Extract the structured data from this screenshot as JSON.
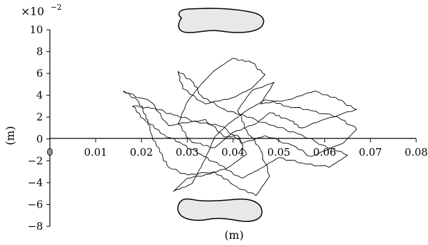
{
  "chart_data": {
    "type": "line",
    "title": "",
    "xlabel": "(m)",
    "ylabel": "(m)",
    "y_multiplier": {
      "base": "×10",
      "exponent": "−2"
    },
    "xlim": [
      0,
      0.08
    ],
    "ylim": [
      -8,
      10
    ],
    "x_ticks": [
      "0",
      "0.01",
      "0.02",
      "0.03",
      "0.04",
      "0.05",
      "0.06",
      "0.07",
      "0.08"
    ],
    "y_ticks": [
      "10",
      "8",
      "6",
      "4",
      "2",
      "0",
      "−2",
      "−4",
      "−6",
      "−8"
    ],
    "grid": false,
    "legend": "none",
    "annotations": [
      "foot-outline-top",
      "foot-outline-bottom"
    ],
    "series": [
      {
        "values_note": "",
        "points": [
          [
            0.038,
            0.2
          ],
          [
            0.034,
            1.8
          ],
          [
            0.026,
            1.2
          ],
          [
            0.022,
            3.4
          ],
          [
            0.016,
            4.4
          ],
          [
            0.019,
            3.6
          ],
          [
            0.021,
            2.2
          ],
          [
            0.022,
            0.6
          ],
          [
            0.024,
            -1.2
          ],
          [
            0.026,
            -2.6
          ],
          [
            0.03,
            -3.3
          ],
          [
            0.036,
            -3.0
          ],
          [
            0.04,
            -4.2
          ],
          [
            0.045,
            -5.2
          ],
          [
            0.048,
            -3.4
          ],
          [
            0.046,
            -1.0
          ],
          [
            0.043,
            0.8
          ],
          [
            0.041,
            2.6
          ],
          [
            0.044,
            4.4
          ],
          [
            0.049,
            5.2
          ],
          [
            0.046,
            3.2
          ],
          [
            0.052,
            3.6
          ],
          [
            0.058,
            4.4
          ],
          [
            0.063,
            3.6
          ],
          [
            0.067,
            2.7
          ],
          [
            0.06,
            1.8
          ],
          [
            0.055,
            1.0
          ],
          [
            0.052,
            1.8
          ],
          [
            0.048,
            2.4
          ],
          [
            0.045,
            1.4
          ],
          [
            0.04,
            0.6
          ],
          [
            0.036,
            -0.8
          ],
          [
            0.031,
            -0.3
          ],
          [
            0.028,
            1.4
          ],
          [
            0.03,
            3.4
          ],
          [
            0.033,
            5.0
          ],
          [
            0.036,
            6.3
          ],
          [
            0.04,
            7.4
          ],
          [
            0.044,
            7.0
          ],
          [
            0.047,
            5.9
          ],
          [
            0.044,
            4.6
          ],
          [
            0.04,
            3.8
          ],
          [
            0.034,
            3.2
          ],
          [
            0.029,
            4.6
          ],
          [
            0.028,
            6.2
          ],
          [
            0.031,
            5.3
          ],
          [
            0.033,
            4.0
          ],
          [
            0.037,
            2.9
          ],
          [
            0.043,
            2.0
          ],
          [
            0.049,
            1.2
          ],
          [
            0.054,
            0.5
          ],
          [
            0.06,
            -0.6
          ],
          [
            0.065,
            -1.5
          ],
          [
            0.061,
            -2.6
          ],
          [
            0.055,
            -2.2
          ],
          [
            0.05,
            -1.7
          ],
          [
            0.046,
            -2.7
          ],
          [
            0.042,
            -3.6
          ],
          [
            0.037,
            -2.4
          ],
          [
            0.033,
            -1.4
          ],
          [
            0.029,
            -0.5
          ],
          [
            0.025,
            0.4
          ],
          [
            0.021,
            1.6
          ],
          [
            0.018,
            3.0
          ],
          [
            0.023,
            2.8
          ],
          [
            0.027,
            2.2
          ],
          [
            0.032,
            1.6
          ],
          [
            0.038,
            1.1
          ],
          [
            0.042,
            -0.4
          ],
          [
            0.047,
            0.3
          ],
          [
            0.053,
            -0.6
          ],
          [
            0.057,
            -1.6
          ],
          [
            0.064,
            -0.4
          ],
          [
            0.067,
            0.9
          ],
          [
            0.063,
            2.0
          ],
          [
            0.057,
            2.6
          ],
          [
            0.052,
            3.0
          ],
          [
            0.047,
            3.6
          ],
          [
            0.043,
            2.6
          ],
          [
            0.039,
            1.4
          ],
          [
            0.036,
            0.2
          ],
          [
            0.034,
            -1.8
          ],
          [
            0.031,
            -4.1
          ],
          [
            0.027,
            -4.8
          ],
          [
            0.03,
            -3.6
          ],
          [
            0.035,
            -3.2
          ],
          [
            0.039,
            -2.6
          ],
          [
            0.043,
            -1.4
          ],
          [
            0.041,
            0.3
          ],
          [
            0.038,
            0.2
          ]
        ]
      }
    ]
  }
}
